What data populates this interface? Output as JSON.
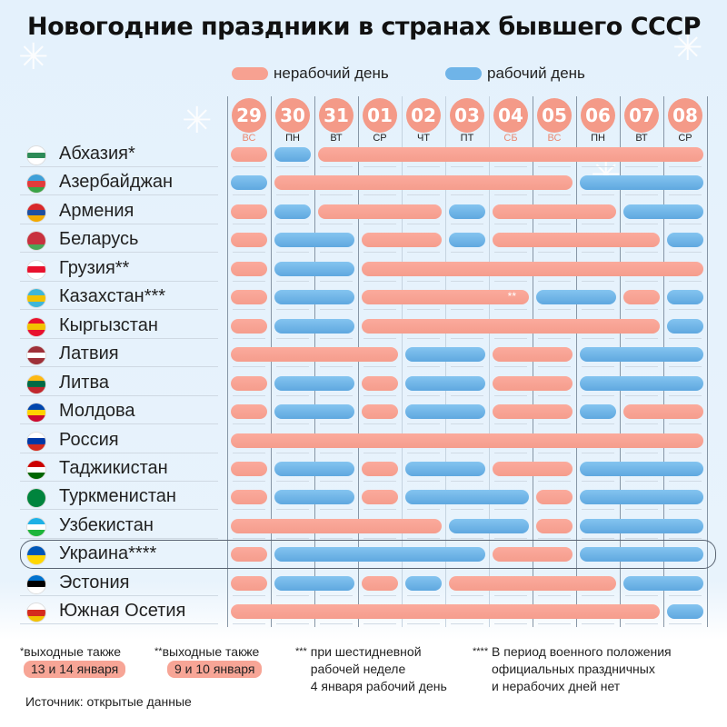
{
  "title": "Новогодние праздники в странах бывшего СССР",
  "legend": {
    "nonworking": "нерабочий день",
    "working": "рабочий день"
  },
  "colors": {
    "nonworking": "#f7a191",
    "working": "#6fb4e8",
    "day_circle": "#f49a88",
    "weekend_text": "#ea8a72"
  },
  "chart_data": {
    "type": "gantt",
    "title": "Новогодние праздники в странах бывшего СССР",
    "days": [
      {
        "date": "29",
        "weekday": "ВС",
        "weekend": true
      },
      {
        "date": "30",
        "weekday": "ПН",
        "weekend": false
      },
      {
        "date": "31",
        "weekday": "ВТ",
        "weekend": false
      },
      {
        "date": "01",
        "weekday": "СР",
        "weekend": false
      },
      {
        "date": "02",
        "weekday": "ЧТ",
        "weekend": false
      },
      {
        "date": "03",
        "weekday": "ПТ",
        "weekend": false
      },
      {
        "date": "04",
        "weekday": "СБ",
        "weekend": true
      },
      {
        "date": "05",
        "weekday": "ВС",
        "weekend": true
      },
      {
        "date": "06",
        "weekday": "ПН",
        "weekend": false
      },
      {
        "date": "07",
        "weekday": "ВТ",
        "weekend": false
      },
      {
        "date": "08",
        "weekday": "СР",
        "weekend": false
      }
    ],
    "countries": [
      {
        "name": "Абхазия*",
        "flag": [
          "#ffffff",
          "#2e8b57",
          "#ffffff"
        ],
        "pattern": "NWNNNNNNNNN"
      },
      {
        "name": "Азербайджан",
        "flag": [
          "#3fa0d8",
          "#e23b3b",
          "#3aa346"
        ],
        "pattern": "WNNNNNNNWWW"
      },
      {
        "name": "Армения",
        "flag": [
          "#d8282b",
          "#1f4fa0",
          "#f2a900"
        ],
        "pattern": "NWNNNWNNNWW"
      },
      {
        "name": "Беларусь",
        "flag": [
          "#c8313e",
          "#c8313e",
          "#4aa657"
        ],
        "pattern": "NWWNNWNNNNW"
      },
      {
        "name": "Грузия**",
        "flag": [
          "#ffffff",
          "#e8112d",
          "#ffffff"
        ],
        "pattern": "NWWNNNNNNNN"
      },
      {
        "name": "Казахстан***",
        "flag": [
          "#3fb6d8",
          "#f2c200",
          "#3fb6d8"
        ],
        "pattern": "NWWNNNNWWNW",
        "note_mark": "**",
        "note_day": 6
      },
      {
        "name": "Кыргызстан",
        "flag": [
          "#e8112d",
          "#f2c200",
          "#e8112d"
        ],
        "pattern": "NWWNNNNNNNW"
      },
      {
        "name": "Латвия",
        "flag": [
          "#9e3039",
          "#ffffff",
          "#9e3039"
        ],
        "pattern": "NNNNWWNNWWW"
      },
      {
        "name": "Литва",
        "flag": [
          "#fdb913",
          "#006a44",
          "#c1272d"
        ],
        "pattern": "NWWNWWNNWWW"
      },
      {
        "name": "Молдова",
        "flag": [
          "#0046ae",
          "#ffd200",
          "#cc092f"
        ],
        "pattern": "NWWNWWNNWNN"
      },
      {
        "name": "Россия",
        "flag": [
          "#ffffff",
          "#0039a6",
          "#d52b1e"
        ],
        "pattern": "NNNNNNNNNNN"
      },
      {
        "name": "Таджикистан",
        "flag": [
          "#cc0000",
          "#ffffff",
          "#006600"
        ],
        "pattern": "NWWNWWNNWWW"
      },
      {
        "name": "Туркменистан",
        "flag": [
          "#00843d",
          "#00843d",
          "#00843d"
        ],
        "pattern": "NWWNWWWNWWW"
      },
      {
        "name": "Узбекистан",
        "flag": [
          "#1eb1e6",
          "#ffffff",
          "#1eb53a"
        ],
        "pattern": "NNNNNWWNWWW"
      },
      {
        "name": "Украина****",
        "flag": [
          "#0057b7",
          "#ffd700"
        ],
        "pattern": "NWWWWWNNWWW",
        "highlight": true
      },
      {
        "name": "Эстония",
        "flag": [
          "#0072ce",
          "#000000",
          "#ffffff"
        ],
        "pattern": "NWWNWNNNNWW"
      },
      {
        "name": "Южная Осетия",
        "flag": [
          "#ffffff",
          "#d52b1e",
          "#f2c200"
        ],
        "pattern": "NNNNNNNNNNW"
      }
    ]
  },
  "notes": [
    {
      "star": "*",
      "text": "выходные также",
      "pill": "13 и 14 января"
    },
    {
      "star": "**",
      "text": "выходные также",
      "pill": "9 и 10 января"
    },
    {
      "star": "***",
      "lines": [
        "при шестидневной",
        "рабочей неделе",
        "4 января рабочий день"
      ]
    },
    {
      "star": "****",
      "lines": [
        "В период военного положения",
        "официальных праздничных",
        "и нерабочих дней нет"
      ]
    }
  ],
  "source": "Источник: открытые данные"
}
